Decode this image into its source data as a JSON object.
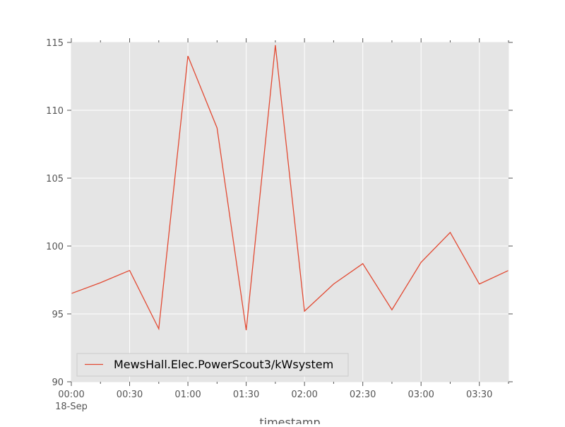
{
  "chart_data": {
    "type": "line",
    "title": "",
    "xlabel": "timestamp",
    "ylabel": "",
    "x_unit_label": "18-Sep",
    "x": [
      "00:00",
      "00:15",
      "00:30",
      "00:45",
      "01:00",
      "01:15",
      "01:30",
      "01:45",
      "02:00",
      "02:15",
      "02:30",
      "02:45",
      "03:00",
      "03:15",
      "03:30",
      "03:45"
    ],
    "x_ticks": [
      "00:00",
      "00:30",
      "01:00",
      "01:30",
      "02:00",
      "02:30",
      "03:00",
      "03:30"
    ],
    "ylim": [
      90,
      115
    ],
    "y_ticks": [
      "90",
      "95",
      "100",
      "105",
      "110",
      "115"
    ],
    "grid": true,
    "legend_position": "bottom-left",
    "background_color": "#e5e5e5",
    "line_color": "#e24a33",
    "series": [
      {
        "name": "MewsHall.Elec.PowerScout3/kWsystem",
        "values": [
          96.5,
          97.3,
          98.2,
          93.9,
          114.0,
          108.7,
          93.8,
          114.8,
          95.2,
          97.2,
          98.7,
          95.3,
          98.8,
          101.0,
          97.2,
          98.2
        ]
      }
    ]
  }
}
